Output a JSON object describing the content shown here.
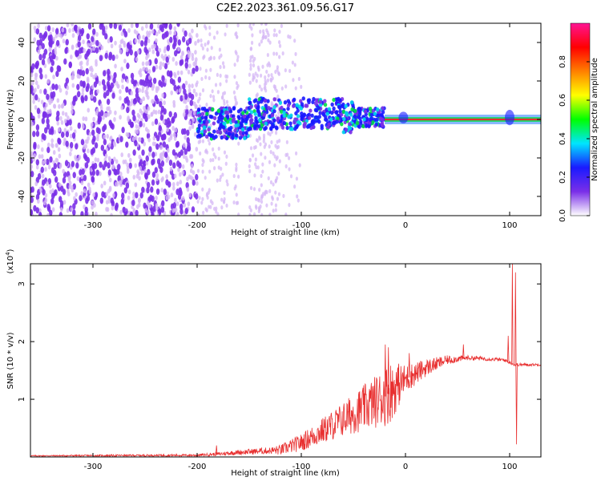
{
  "title": "C2E2.2023.361.09.56.G17",
  "spectrogram": {
    "type": "heatmap",
    "xlabel": "Height of straight line (km)",
    "ylabel": "Frequency (Hz)",
    "xlim": [
      -360,
      130
    ],
    "ylim": [
      -50,
      50
    ],
    "xticks": [
      {
        "value": -300,
        "label": "-300"
      },
      {
        "value": -200,
        "label": "-200"
      },
      {
        "value": -100,
        "label": "-100"
      },
      {
        "value": 0,
        "label": "0"
      },
      {
        "value": 100,
        "label": "100"
      }
    ],
    "yticks": [
      {
        "value": 40,
        "label": "40"
      },
      {
        "value": 20,
        "label": "20"
      },
      {
        "value": 0,
        "label": "0"
      },
      {
        "value": -20,
        "label": "-20"
      },
      {
        "value": -40,
        "label": "-40"
      }
    ],
    "noise_region": [
      -360,
      -200
    ],
    "signal_band_start": -200,
    "carrier_line_start": -20,
    "colors": {
      "noise_dense": "#7a2fe8",
      "noise_light": "#d6b8f5",
      "carrier": "#e03030",
      "halo": "#2a7cff"
    }
  },
  "colorbar": {
    "label": "Normalized spectral amplitude",
    "range": [
      0,
      1
    ],
    "ticks": [
      {
        "value": 0.0,
        "label": "0.0"
      },
      {
        "value": 0.2,
        "label": "0.2"
      },
      {
        "value": 0.4,
        "label": "0.4"
      },
      {
        "value": 0.6,
        "label": "0.6"
      },
      {
        "value": 0.8,
        "label": "0.8"
      }
    ],
    "colormap": [
      "#ffffff",
      "#7a2fe8",
      "#1a1aff",
      "#00e5ff",
      "#00ff00",
      "#ffff00",
      "#ff8000",
      "#ff0000",
      "#ff1493"
    ]
  },
  "snr": {
    "type": "line",
    "xlabel": "Height of straight line (km)",
    "ylabel": "SNR (10 * v/v)",
    "y_multiplier": "(x10",
    "y_multiplier_exp": "4",
    "y_multiplier_close": ")",
    "xlim": [
      -360,
      130
    ],
    "ylim": [
      0,
      3.35
    ],
    "xticks": [
      {
        "value": -300,
        "label": "-300"
      },
      {
        "value": -200,
        "label": "-200"
      },
      {
        "value": -100,
        "label": "-100"
      },
      {
        "value": 0,
        "label": "0"
      },
      {
        "value": 100,
        "label": "100"
      }
    ],
    "yticks": [
      {
        "value": 1,
        "label": "1"
      },
      {
        "value": 2,
        "label": "2"
      },
      {
        "value": 3,
        "label": "3"
      }
    ],
    "color": "#e83030",
    "profile": [
      [
        -360,
        0.02
      ],
      [
        -200,
        0.03
      ],
      [
        -180,
        0.05
      ],
      [
        -160,
        0.08
      ],
      [
        -140,
        0.1
      ],
      [
        -120,
        0.12
      ],
      [
        -100,
        0.25
      ],
      [
        -80,
        0.45
      ],
      [
        -60,
        0.65
      ],
      [
        -40,
        0.85
      ],
      [
        -20,
        1.05
      ],
      [
        0,
        1.35
      ],
      [
        20,
        1.55
      ],
      [
        40,
        1.68
      ],
      [
        60,
        1.72
      ],
      [
        80,
        1.7
      ],
      [
        95,
        1.68
      ],
      [
        105,
        1.6
      ],
      [
        130,
        1.6
      ]
    ],
    "noise_amplitude": [
      [
        -360,
        0.01
      ],
      [
        -200,
        0.02
      ],
      [
        -130,
        0.06
      ],
      [
        -100,
        0.15
      ],
      [
        -60,
        0.3
      ],
      [
        -30,
        0.45
      ],
      [
        -15,
        0.55
      ],
      [
        0,
        0.25
      ],
      [
        20,
        0.15
      ],
      [
        40,
        0.08
      ],
      [
        60,
        0.04
      ],
      [
        95,
        0.03
      ],
      [
        130,
        0.02
      ]
    ],
    "spikes": [
      {
        "x": -182,
        "y": 0.2
      },
      {
        "x": -140,
        "y": 0.14
      },
      {
        "x": -20,
        "y": 1.95
      },
      {
        "x": -17,
        "y": 1.9
      },
      {
        "x": -8,
        "y": 1.55
      },
      {
        "x": 3,
        "y": 1.8
      },
      {
        "x": 55,
        "y": 1.95
      },
      {
        "x": 102,
        "y": 3.35
      },
      {
        "x": 105,
        "y": 3.2
      },
      {
        "x": 106,
        "y": 0.22
      },
      {
        "x": 98,
        "y": 2.1
      }
    ]
  }
}
